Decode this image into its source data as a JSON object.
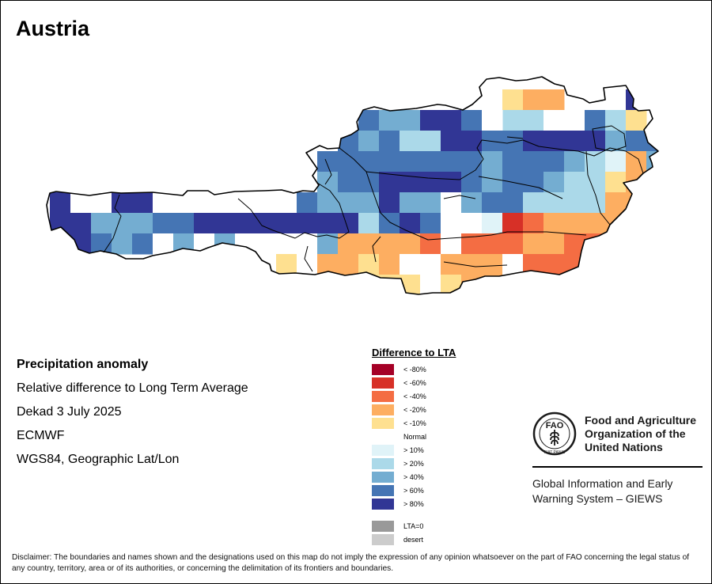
{
  "title": "Austria",
  "info": {
    "heading": "Precipitation anomaly",
    "line1": "Relative difference to Long Term Average",
    "line2": "Dekad 3 July 2025",
    "line3": "ECMWF",
    "line4": "WGS84, Geographic Lat/Lon"
  },
  "legend": {
    "title": "Difference to LTA",
    "items": [
      {
        "label": "< -80%",
        "color": "#a50026"
      },
      {
        "label": "< -60%",
        "color": "#d73027"
      },
      {
        "label": "< -40%",
        "color": "#f46d43"
      },
      {
        "label": "< -20%",
        "color": "#fdae61"
      },
      {
        "label": "< -10%",
        "color": "#fee090"
      },
      {
        "label": "Normal",
        "color": "#ffffff"
      },
      {
        "label": "> 10%",
        "color": "#e0f3f8"
      },
      {
        "label": "> 20%",
        "color": "#abd9e9"
      },
      {
        "label": "> 40%",
        "color": "#74add1"
      },
      {
        "label": "> 60%",
        "color": "#4575b4"
      },
      {
        "label": "> 80%",
        "color": "#313695"
      },
      {
        "label": "LTA=0",
        "color": "#999999"
      },
      {
        "label": "desert",
        "color": "#cccccc"
      }
    ]
  },
  "fao": {
    "name_line1": "Food and Agriculture",
    "name_line2": "Organization of the",
    "name_line3": "United Nations",
    "emblem_text": "FAO",
    "emblem_motto": "FIAT PANIS",
    "giews_line1": "Global Information and Early",
    "giews_line2": "Warning System – GIEWS"
  },
  "disclaimer": "Disclaimer: The boundaries and names shown and the designations used on this map do not imply the expression of any opinion whatsoever on the part of FAO concerning the legal status of any country, territory, area or of its authorities, or concerning the delimitation of its frontiers and boundaries.",
  "grid": {
    "class_colors": {
      "0": "#ffffff",
      "1": "#fee090",
      "2": "#fdae61",
      "3": "#f46d43",
      "4": "#d73027",
      "6": "#e0f3f8",
      "7": "#abd9e9",
      "8": "#74add1",
      "9": "#4575b4",
      "10": "#313695"
    },
    "rows": [
      {
        "row": 0,
        "col0": 24,
        "classes": [
          1,
          2,
          2,
          null,
          null,
          null,
          10
        ]
      },
      {
        "row": 1,
        "col0": 24,
        "classes": [
          7,
          7,
          0,
          0,
          9,
          7,
          1
        ]
      },
      {
        "row": 1,
        "col0": 17,
        "classes": [
          9,
          8,
          8,
          10,
          10,
          9,
          0
        ]
      },
      {
        "row": 2,
        "col0": 16,
        "classes": [
          9,
          8,
          9,
          7,
          7,
          10,
          10,
          9,
          9,
          10,
          10,
          10,
          10,
          8,
          9,
          9,
          10
        ]
      },
      {
        "row": 3,
        "col0": 15,
        "classes": [
          9,
          9,
          9,
          9,
          9,
          9,
          9,
          9,
          8,
          9,
          9,
          9,
          8,
          7,
          6,
          2,
          8,
          9,
          7
        ]
      },
      {
        "row": 4,
        "col0": 15,
        "classes": [
          8,
          9,
          9,
          10,
          10,
          10,
          10,
          9,
          8,
          9,
          9,
          8,
          7,
          7,
          1,
          2,
          2,
          3
        ]
      },
      {
        "row": 5,
        "col0": 2,
        "classes": [
          10,
          0,
          0,
          10,
          10,
          0,
          0,
          0,
          0,
          0,
          0,
          0,
          9,
          8,
          8,
          8,
          10,
          8,
          8,
          0,
          8,
          9,
          9,
          7,
          7,
          7,
          7,
          2,
          2,
          2,
          3
        ]
      },
      {
        "row": 6,
        "col0": 2,
        "classes": [
          10,
          10,
          8,
          8,
          8,
          9,
          9,
          10,
          10,
          10,
          10,
          10,
          10,
          10,
          10,
          7,
          9,
          10,
          9,
          0,
          0,
          6,
          4,
          3,
          2,
          2,
          2,
          2,
          2,
          2,
          3
        ]
      },
      {
        "row": 7,
        "col0": 2,
        "classes": [
          10,
          10,
          9,
          8,
          9,
          0,
          8,
          0,
          8,
          0,
          0,
          0,
          0,
          8,
          2,
          2,
          2,
          2,
          3,
          0,
          3,
          3,
          3,
          2,
          2,
          3,
          3,
          2,
          2,
          0,
          0
        ]
      },
      {
        "row": 8,
        "col0": 13,
        "classes": [
          1,
          0,
          2,
          2,
          1,
          2,
          0,
          0,
          2,
          2,
          2,
          0,
          3,
          3,
          3,
          3,
          3,
          3
        ]
      },
      {
        "row": 9,
        "col0": 13,
        "classes": [
          1,
          2,
          7,
          1,
          1,
          1,
          1,
          0,
          1,
          2,
          2,
          0,
          7,
          7,
          3,
          3,
          3,
          3
        ]
      },
      {
        "row": 10,
        "col0": 13,
        "classes": [
          1,
          0,
          0,
          0,
          0,
          0,
          0,
          0,
          1,
          1,
          1,
          0,
          0,
          0,
          0,
          0,
          0,
          0
        ]
      },
      {
        "row": 11,
        "col0": 19,
        "classes": [
          2,
          0,
          1,
          1
        ]
      }
    ]
  }
}
